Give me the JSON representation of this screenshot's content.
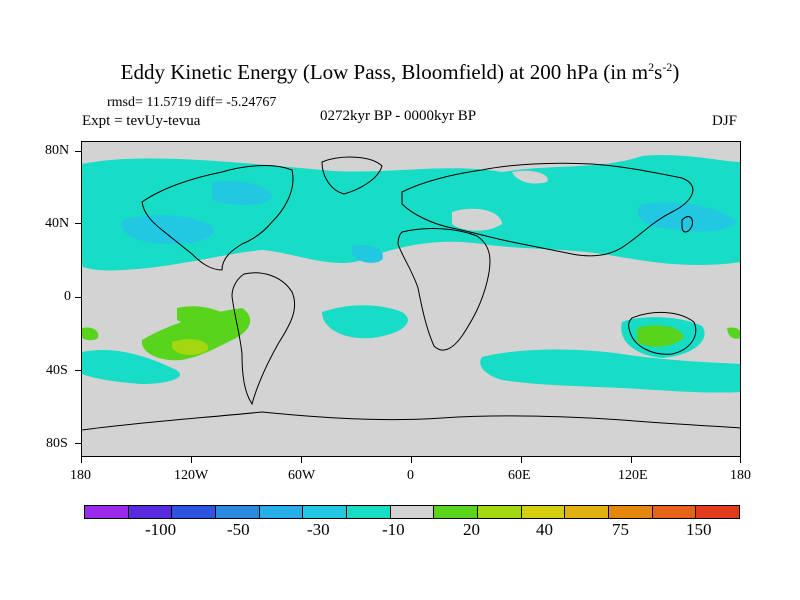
{
  "header": {
    "title_main": "Eddy Kinetic Energy (Low Pass, Bloomfield) at 200 hPa (in m",
    "title_sup1": "2",
    "title_mid": "s",
    "title_sup2": "-2",
    "title_end": ")",
    "stats": "rmsd= 11.5719 diff= -5.24767",
    "expt": "Expt = tevUy-tevua",
    "period": "0272kyr BP - 0000kyr BP",
    "season": "DJF"
  },
  "axes": {
    "lat_labels": [
      "80N",
      "40N",
      "0",
      "40S",
      "80S"
    ],
    "lon_labels": [
      "180",
      "120W",
      "60W",
      "0",
      "60E",
      "120E",
      "180"
    ]
  },
  "colorbar": {
    "colors": [
      "#9a28e8",
      "#5a2ae0",
      "#2b55de",
      "#2a8ae2",
      "#27aee6",
      "#22c8e2",
      "#17dcc6",
      "#d3d3d3",
      "#58d41c",
      "#a3d712",
      "#d3ce0e",
      "#e3b010",
      "#e5860f",
      "#e6621b",
      "#e23b1c"
    ],
    "labels": [
      "-100",
      "-50",
      "-30",
      "-10",
      "20",
      "40",
      "75",
      "150"
    ]
  },
  "map": {
    "colors": {
      "land_mask_background": "#d3d3d3",
      "negative_light": "#17dcc6",
      "negative_mid": "#22c8e2",
      "positive_green": "#58d41c",
      "positive_yellowgreen": "#a3d712"
    }
  }
}
